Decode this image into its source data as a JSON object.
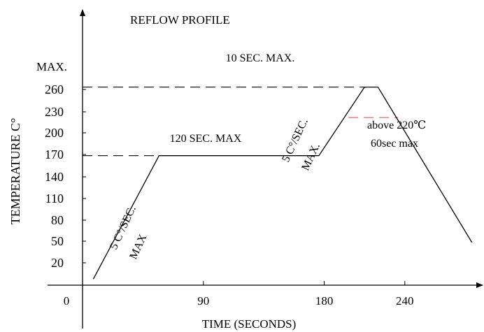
{
  "chart_data": {
    "type": "line",
    "title": "REFLOW PROFILE",
    "xlabel": "TIME (SECONDS)",
    "ylabel": "TEMPERATURE  C°",
    "x_ticks": [
      {
        "value": 0,
        "label": "0"
      },
      {
        "value": 90,
        "label": "90"
      },
      {
        "value": 180,
        "label": "180"
      },
      {
        "value": 240,
        "label": "240"
      }
    ],
    "y_max_label": "MAX.",
    "y_ticks": [
      {
        "value": 260,
        "label": "260"
      },
      {
        "value": 230,
        "label": "230"
      },
      {
        "value": 200,
        "label": "200"
      },
      {
        "value": 170,
        "label": "170"
      },
      {
        "value": 140,
        "label": "140"
      },
      {
        "value": 110,
        "label": "110"
      },
      {
        "value": 80,
        "label": "80"
      },
      {
        "value": 50,
        "label": "50"
      },
      {
        "value": 20,
        "label": "20"
      }
    ],
    "series": [
      {
        "points": [
          {
            "x": 8,
            "y": 8
          },
          {
            "x": 57,
            "y": 170
          },
          {
            "x": 176,
            "y": 170
          },
          {
            "x": 210,
            "y": 260
          },
          {
            "x": 220,
            "y": 260
          },
          {
            "x": 290,
            "y": 56
          }
        ]
      }
    ],
    "reference_lines": [
      {
        "y": 260,
        "x_start": 0,
        "x_end": 210,
        "style": "dashed",
        "color": "#000000"
      },
      {
        "y": 170,
        "x_start": 0,
        "x_end": 57,
        "style": "dashed",
        "color": "#000000"
      },
      {
        "y": 220,
        "x_start": 198,
        "x_end": 235,
        "style": "dashed",
        "color": "#e05a5a"
      }
    ],
    "annotations": {
      "peak": "10 SEC. MAX.",
      "soak": "120 SEC. MAX",
      "above_line1": "above 220℃",
      "above_line2": "60sec max",
      "ramp_up_line1": "5 C°/SEC.",
      "ramp_up_line2": "MAX",
      "ramp_peak_line1": "5 C°/SEC.",
      "ramp_peak_line2": "MAX."
    },
    "xlim": [
      -16,
      312
    ],
    "ylim": [
      -11,
      313
    ]
  }
}
